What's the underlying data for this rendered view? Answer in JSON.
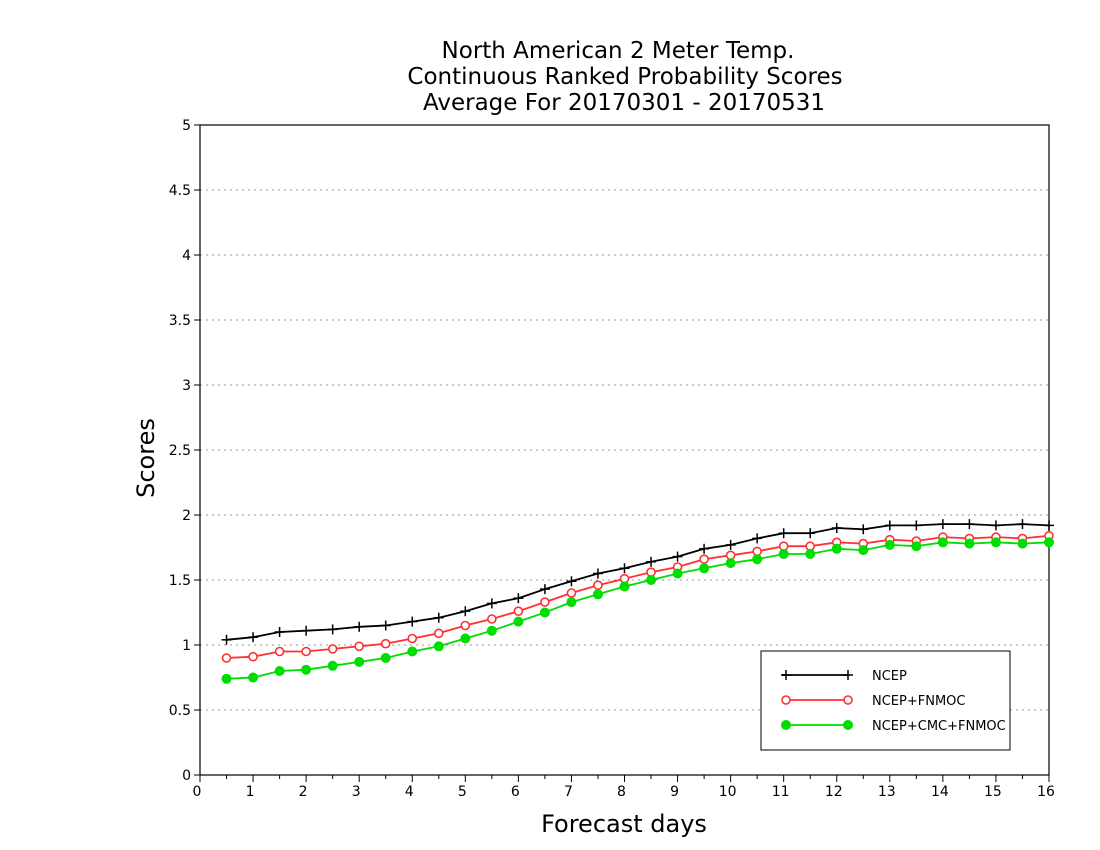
{
  "chart_data": {
    "type": "line",
    "title": [
      "North American 2 Meter Temp.",
      "Continuous Ranked Probability Scores",
      "Average For 20170301 - 20170531"
    ],
    "xlabel": "Forecast days",
    "ylabel": "Scores",
    "xlim": [
      0,
      16
    ],
    "ylim": [
      0,
      5
    ],
    "xticks": [
      0,
      1,
      2,
      3,
      4,
      5,
      6,
      7,
      8,
      9,
      10,
      11,
      12,
      13,
      14,
      15,
      16
    ],
    "yticks": [
      0,
      0.5,
      1,
      1.5,
      2,
      2.5,
      3,
      3.5,
      4,
      4.5,
      5
    ],
    "ytick_labels": [
      "0",
      "0.5",
      "1",
      "1.5",
      "2",
      "2.5",
      "3",
      "3.5",
      "4",
      "4.5",
      "5"
    ],
    "grid": "horizontal dotted",
    "legend_position": "bottom-right",
    "x": [
      0.5,
      1,
      1.5,
      2,
      2.5,
      3,
      3.5,
      4,
      4.5,
      5,
      5.5,
      6,
      6.5,
      7,
      7.5,
      8,
      8.5,
      9,
      9.5,
      10,
      10.5,
      11,
      11.5,
      12,
      12.5,
      13,
      13.5,
      14,
      14.5,
      15,
      15.5,
      16
    ],
    "series": [
      {
        "name": "NCEP",
        "color": "#000000",
        "marker": "plus",
        "values": [
          1.04,
          1.06,
          1.1,
          1.11,
          1.12,
          1.14,
          1.15,
          1.18,
          1.21,
          1.26,
          1.32,
          1.36,
          1.43,
          1.49,
          1.55,
          1.59,
          1.64,
          1.68,
          1.74,
          1.77,
          1.82,
          1.86,
          1.86,
          1.9,
          1.89,
          1.92,
          1.92,
          1.93,
          1.93,
          1.92,
          1.93,
          1.92
        ]
      },
      {
        "name": "NCEP+FNMOC",
        "color": "#ff3030",
        "marker": "open-circle",
        "values": [
          0.9,
          0.91,
          0.95,
          0.95,
          0.97,
          0.99,
          1.01,
          1.05,
          1.09,
          1.15,
          1.2,
          1.26,
          1.33,
          1.4,
          1.46,
          1.51,
          1.56,
          1.6,
          1.66,
          1.69,
          1.72,
          1.76,
          1.76,
          1.79,
          1.78,
          1.81,
          1.8,
          1.83,
          1.82,
          1.83,
          1.82,
          1.84
        ]
      },
      {
        "name": "NCEP+CMC+FNMOC",
        "color": "#00dd00",
        "marker": "filled-circle",
        "values": [
          0.74,
          0.75,
          0.8,
          0.81,
          0.84,
          0.87,
          0.9,
          0.95,
          0.99,
          1.05,
          1.11,
          1.18,
          1.25,
          1.33,
          1.39,
          1.45,
          1.5,
          1.55,
          1.59,
          1.63,
          1.66,
          1.7,
          1.7,
          1.74,
          1.73,
          1.77,
          1.76,
          1.79,
          1.78,
          1.79,
          1.78,
          1.79
        ]
      }
    ]
  }
}
